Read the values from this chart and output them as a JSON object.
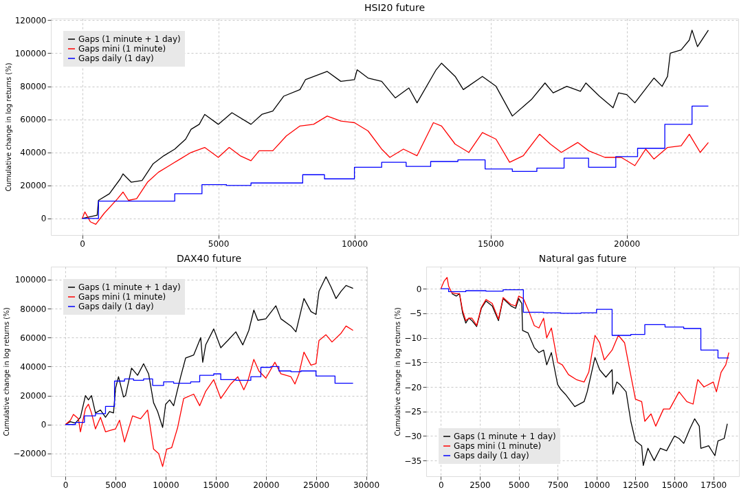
{
  "chart_data": [
    {
      "type": "line",
      "title": "HSI20 future",
      "ylabel": "Cumulative change in log returns (%)",
      "xlim": [
        -1150,
        24100
      ],
      "ylim": [
        -10000,
        121000
      ],
      "xticks": [
        0,
        5000,
        10000,
        15000,
        20000
      ],
      "yticks": [
        0,
        20000,
        40000,
        60000,
        80000,
        100000,
        120000
      ],
      "grid": true,
      "legend": "top left",
      "series": [
        {
          "name": "Gaps (1 minute + 1 day)",
          "color": "#000000",
          "x": [
            0,
            550,
            600,
            1000,
            1400,
            1500,
            1800,
            2200,
            2600,
            3000,
            3400,
            3800,
            4000,
            4300,
            4500,
            5000,
            5500,
            6200,
            6600,
            7000,
            7400,
            8000,
            8200,
            9000,
            9500,
            10000,
            10100,
            10500,
            11000,
            11500,
            12000,
            12300,
            13000,
            13200,
            13700,
            14000,
            14700,
            15200,
            15800,
            16500,
            17000,
            17300,
            17800,
            18300,
            18500,
            19000,
            19500,
            19700,
            20000,
            20300,
            21000,
            21300,
            21500,
            21600,
            22000,
            22300,
            22400,
            22600,
            23000
          ],
          "values": [
            0,
            2000,
            11000,
            15000,
            24000,
            27000,
            22000,
            23000,
            33000,
            38000,
            42000,
            48000,
            54000,
            57000,
            63000,
            57000,
            64000,
            57000,
            63000,
            65000,
            74000,
            78000,
            84000,
            89000,
            83000,
            84000,
            90000,
            85000,
            83000,
            73000,
            79000,
            70000,
            90000,
            94000,
            86000,
            78000,
            86000,
            80000,
            62000,
            72000,
            82000,
            76000,
            80000,
            77000,
            82000,
            74000,
            67000,
            76000,
            75000,
            70000,
            85000,
            80000,
            86000,
            100000,
            102000,
            108000,
            114000,
            104000,
            114000
          ]
        },
        {
          "name": "Gaps mini (1 minute)",
          "color": "#ff0000",
          "x": [
            0,
            100,
            300,
            500,
            800,
            1300,
            1500,
            1700,
            2000,
            2400,
            2800,
            3200,
            3600,
            4000,
            4500,
            5000,
            5400,
            5800,
            6200,
            6500,
            7000,
            7500,
            8000,
            8500,
            9000,
            9500,
            10000,
            10500,
            11000,
            11300,
            11800,
            12300,
            12900,
            13200,
            13700,
            14200,
            14700,
            15200,
            15700,
            16200,
            16800,
            17200,
            17600,
            18200,
            18600,
            19200,
            19800,
            20300,
            20700,
            21000,
            21500,
            22000,
            22300,
            22700,
            23000
          ],
          "values": [
            0,
            4000,
            -2000,
            -3500,
            3000,
            12000,
            16000,
            11000,
            12000,
            22000,
            28000,
            32000,
            36000,
            40000,
            43000,
            37000,
            43000,
            38000,
            35000,
            41000,
            41000,
            50000,
            56000,
            57000,
            62000,
            59000,
            58000,
            53000,
            42000,
            37000,
            42000,
            38000,
            58000,
            56000,
            45000,
            40000,
            52000,
            48000,
            34000,
            38000,
            51000,
            45000,
            40000,
            46000,
            41000,
            37000,
            37000,
            32000,
            42000,
            36000,
            43000,
            44000,
            51000,
            40000,
            46000
          ]
        },
        {
          "name": "Gaps daily (1 day)",
          "color": "#0000ff",
          "type": "step",
          "x": [
            0,
            600,
            3400,
            4400,
            5300,
            6200,
            8100,
            8900,
            10000,
            11000,
            11900,
            12800,
            13800,
            14800,
            15800,
            16700,
            17700,
            18600,
            19600,
            20400,
            21400,
            22400,
            23000
          ],
          "values": [
            0,
            10500,
            15000,
            20500,
            20000,
            21500,
            26500,
            24000,
            31000,
            34000,
            31500,
            34500,
            35500,
            30000,
            28500,
            30500,
            36500,
            31000,
            37500,
            42500,
            57000,
            68000,
            68000
          ]
        }
      ]
    },
    {
      "type": "line",
      "title": "DAX40 future",
      "ylabel": "Cumulative change in log returns (%)",
      "xlim": [
        -1450,
        30100
      ],
      "ylim": [
        -35700,
        109000
      ],
      "xticks": [
        0,
        5000,
        10000,
        15000,
        20000,
        25000,
        30000
      ],
      "yticks": [
        -20000,
        0,
        20000,
        40000,
        60000,
        80000,
        100000
      ],
      "grid": true,
      "legend": "top left",
      "series": [
        {
          "name": "Gaps (1 minute + 1 day)",
          "color": "#000000",
          "x": [
            0,
            500,
            1000,
            1500,
            2000,
            2300,
            2600,
            3000,
            3500,
            4000,
            4400,
            4800,
            5000,
            5300,
            5800,
            6000,
            6600,
            7200,
            7800,
            8300,
            8800,
            9200,
            9700,
            10000,
            10400,
            10800,
            11500,
            12000,
            12800,
            13500,
            13700,
            14000,
            14800,
            15500,
            16200,
            17000,
            17700,
            18300,
            18800,
            19200,
            20000,
            21000,
            21500,
            22500,
            23000,
            23800,
            24500,
            25000,
            25300,
            26000,
            26500,
            27000,
            27500,
            28000,
            28700
          ],
          "values": [
            0,
            2000,
            1000,
            5000,
            20000,
            17000,
            20000,
            8000,
            10000,
            5000,
            9000,
            8000,
            25000,
            33000,
            19000,
            20000,
            39000,
            34000,
            42000,
            35000,
            15000,
            9000,
            -2000,
            14000,
            17000,
            13000,
            33000,
            46000,
            48000,
            60000,
            43000,
            55000,
            66000,
            53000,
            58000,
            64000,
            55000,
            65000,
            79000,
            72000,
            73000,
            82000,
            73000,
            68000,
            64000,
            87000,
            78000,
            76000,
            92000,
            102000,
            95000,
            87000,
            92000,
            96000,
            94000
          ]
        },
        {
          "name": "Gaps mini (1 minute)",
          "color": "#ff0000",
          "x": [
            0,
            500,
            800,
            1300,
            1500,
            2000,
            2300,
            2600,
            3000,
            3500,
            4000,
            4500,
            5000,
            5400,
            5900,
            6700,
            7500,
            8200,
            8800,
            9300,
            9700,
            10100,
            10600,
            11200,
            11800,
            12800,
            13400,
            14000,
            14800,
            15500,
            16500,
            17200,
            17800,
            18200,
            18800,
            19300,
            20000,
            20900,
            21500,
            22500,
            22900,
            23300,
            23800,
            24500,
            25000,
            25300,
            26000,
            26600,
            27500,
            28000,
            28700
          ],
          "values": [
            0,
            3000,
            7000,
            4000,
            -5000,
            11000,
            14000,
            8000,
            -3000,
            5000,
            -5000,
            -4000,
            -3000,
            3000,
            -12000,
            6000,
            4000,
            10000,
            -17000,
            -20000,
            -29000,
            -17000,
            -16000,
            -2000,
            18000,
            21000,
            13000,
            23000,
            31000,
            18000,
            28000,
            33000,
            24000,
            30000,
            45000,
            37000,
            32000,
            43000,
            35000,
            33000,
            28000,
            35000,
            50000,
            41000,
            42000,
            58000,
            62000,
            57000,
            63000,
            68000,
            65000
          ]
        },
        {
          "name": "Gaps daily (1 day)",
          "color": "#0000ff",
          "type": "step",
          "x": [
            0,
            1000,
            1900,
            3000,
            4000,
            4900,
            5900,
            6800,
            7800,
            8700,
            9800,
            10800,
            12500,
            13400,
            14800,
            15500,
            17000,
            18500,
            19500,
            20500,
            21300,
            22500,
            23500,
            25000,
            26900,
            28700
          ],
          "values": [
            0,
            1500,
            6000,
            7500,
            12500,
            30000,
            31500,
            30500,
            31500,
            27000,
            29500,
            28500,
            29500,
            34000,
            35000,
            31000,
            30500,
            33000,
            39500,
            40000,
            37000,
            36500,
            37000,
            33500,
            28500,
            28500
          ]
        }
      ]
    },
    {
      "type": "line",
      "title": "Natural gas future",
      "ylabel": "Cumulative change in log returns (%)",
      "xlim": [
        -940,
        19150
      ],
      "ylim": [
        -38.2,
        4.5
      ],
      "xticks": [
        0,
        2500,
        5000,
        7500,
        10000,
        12500,
        15000,
        17500
      ],
      "yticks": [
        -35,
        -30,
        -25,
        -20,
        -15,
        -10,
        -5,
        0
      ],
      "grid": true,
      "legend": "bottom left",
      "series": [
        {
          "name": "Gaps (1 minute + 1 day)",
          "color": "#000000",
          "x": [
            700,
            1000,
            1200,
            1400,
            1600,
            1800,
            2000,
            2300,
            2600,
            2900,
            3300,
            3700,
            4000,
            4500,
            4800,
            5000,
            5200,
            5250,
            5600,
            6000,
            6300,
            6600,
            6800,
            7100,
            7500,
            7700,
            8000,
            8600,
            9200,
            9400,
            9900,
            10200,
            10600,
            11000,
            11050,
            11300,
            11500,
            11900,
            12200,
            12500,
            12900,
            13000,
            13300,
            13700,
            14100,
            14500,
            15000,
            15300,
            15600,
            16000,
            16300,
            16600,
            16700,
            17200,
            17600,
            17800,
            18200,
            18400
          ],
          "values": [
            -1,
            -1.5,
            -1,
            -5,
            -7,
            -6,
            -6.5,
            -7.7,
            -4,
            -2.5,
            -3.5,
            -6.5,
            -2,
            -3.5,
            -4,
            -2,
            -3,
            -8.5,
            -9,
            -12,
            -13,
            -12.5,
            -15.5,
            -13,
            -19.5,
            -20.5,
            -21.5,
            -24,
            -23,
            -21,
            -14,
            -16.5,
            -18,
            -16.5,
            -21.5,
            -19,
            -19.5,
            -21,
            -27,
            -31,
            -32,
            -36,
            -32.5,
            -35,
            -32.5,
            -33,
            -30,
            -30.5,
            -31.5,
            -28.5,
            -26.5,
            -28,
            -32.5,
            -32,
            -34,
            -31,
            -30.5,
            -27.5
          ]
        },
        {
          "name": "Gaps mini (1 minute)",
          "color": "#ff0000",
          "x": [
            0,
            200,
            400,
            500,
            700,
            1000,
            1200,
            1400,
            1600,
            1800,
            2000,
            2300,
            2600,
            2900,
            3300,
            3700,
            4000,
            4500,
            4800,
            5000,
            5300,
            5700,
            6000,
            6300,
            6600,
            6800,
            7100,
            7500,
            7800,
            8200,
            8700,
            9200,
            9500,
            9900,
            10200,
            10500,
            11000,
            11400,
            11800,
            12100,
            12500,
            12900,
            13100,
            13500,
            13800,
            14300,
            14700,
            15300,
            15800,
            16200,
            16500,
            16900,
            17500,
            17700,
            18000,
            18300,
            18500
          ],
          "values": [
            0,
            1.5,
            2.3,
            0.5,
            -0.8,
            -1,
            -1,
            -4.5,
            -6.5,
            -6,
            -6,
            -7.5,
            -3.8,
            -2.2,
            -3,
            -6.2,
            -1.8,
            -3.2,
            -3.5,
            -1.5,
            -2,
            -5,
            -7.5,
            -8,
            -6,
            -10,
            -8,
            -15,
            -15.5,
            -17.5,
            -18.5,
            -19,
            -17,
            -9.5,
            -11,
            -14.5,
            -12.5,
            -9.5,
            -11,
            -16,
            -22.5,
            -23,
            -27,
            -25.5,
            -28,
            -24.5,
            -24.5,
            -21,
            -23,
            -23.5,
            -18.5,
            -20,
            -19,
            -21,
            -17,
            -15.5,
            -13
          ]
        },
        {
          "name": "Gaps daily (1 day)",
          "color": "#0000ff",
          "type": "step",
          "x": [
            0,
            500,
            1600,
            2900,
            4000,
            5300,
            6600,
            7700,
            9000,
            10000,
            11000,
            12200,
            13100,
            14400,
            15600,
            16700,
            17800,
            18500
          ],
          "values": [
            0,
            -0.6,
            -0.4,
            -0.5,
            -0.2,
            -4.8,
            -4.9,
            -5,
            -4.9,
            -4.2,
            -9.5,
            -9.3,
            -7.3,
            -7.8,
            -8.1,
            -12.5,
            -14.1,
            -14.1
          ]
        }
      ]
    }
  ]
}
